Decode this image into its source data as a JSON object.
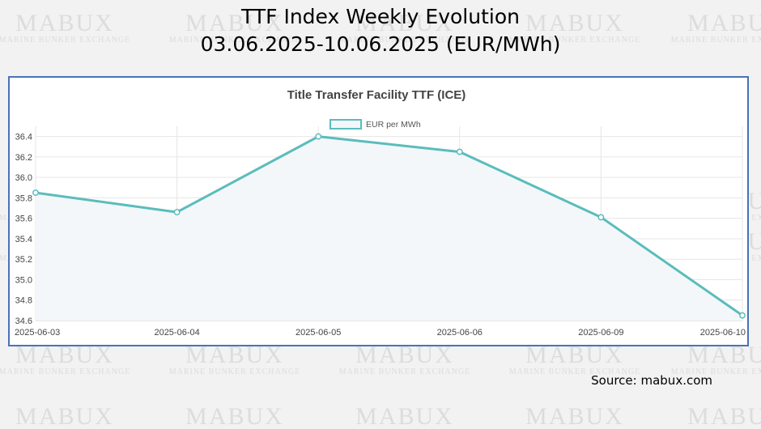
{
  "slide": {
    "title_line1": "TTF Index Weekly Evolution",
    "title_line2": "03.06.2025-10.06.2025 (EUR/MWh)",
    "source": "Source: mabux.com"
  },
  "watermark": {
    "brand": "MABUX",
    "tagline": "MARINE BUNKER EXCHANGE"
  },
  "chart_data": {
    "type": "line",
    "title": "Title Transfer Facility TTF (ICE)",
    "categories": [
      "2025-06-03",
      "2025-06-04",
      "2025-06-05",
      "2025-06-06",
      "2025-06-09",
      "2025-06-10"
    ],
    "series": [
      {
        "name": "EUR per MWh",
        "values": [
          35.85,
          35.66,
          36.4,
          36.25,
          35.61,
          34.65
        ]
      }
    ],
    "ylim": [
      34.6,
      36.5
    ],
    "yticks": [
      34.6,
      34.8,
      35.0,
      35.2,
      35.4,
      35.6,
      35.8,
      36.0,
      36.2,
      36.4
    ],
    "grid": true,
    "legend": "top",
    "colors": {
      "line": "#5bbcbc",
      "fill": "#f3f7f9",
      "grid": "#e6e6e6",
      "text": "#444444"
    }
  }
}
